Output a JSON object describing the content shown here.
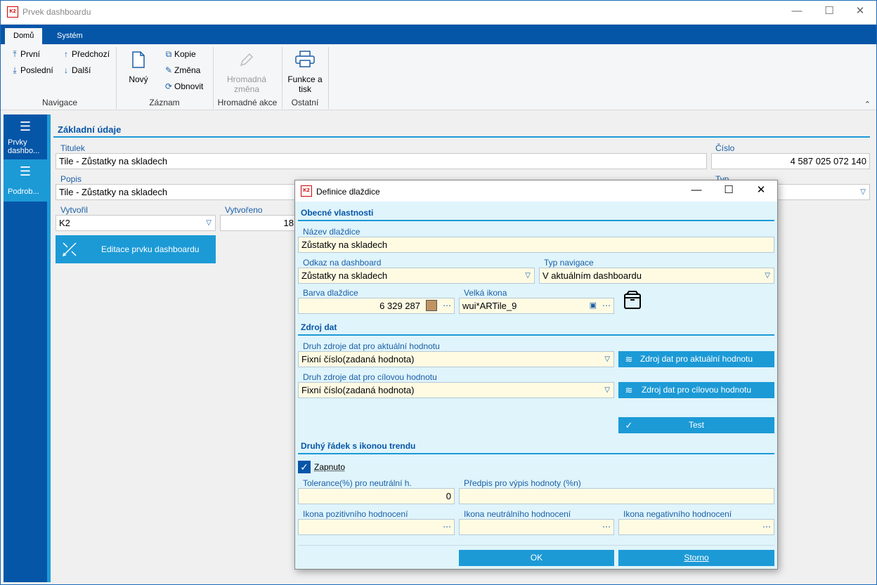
{
  "window": {
    "title": "Prvek dashboardu",
    "logo": "K2"
  },
  "ribbon": {
    "tabs": [
      "Domů",
      "Systém"
    ],
    "navigace": {
      "first": "První",
      "prev": "Předchozí",
      "last": "Poslední",
      "next": "Další",
      "label": "Navigace"
    },
    "zaznam": {
      "new": "Nový",
      "copy": "Kopie",
      "change": "Změna",
      "refresh": "Obnovit",
      "label": "Záznam"
    },
    "hromadne": {
      "bulk_line1": "Hromadná",
      "bulk_line2": "změna",
      "label": "Hromadné akce"
    },
    "ostatni": {
      "print_line1": "Funkce a",
      "print_line2": "tisk",
      "label": "Ostatní"
    }
  },
  "leftnav": {
    "items": [
      {
        "label_line1": "Prvky",
        "label_line2": "dashbo...",
        "icon": "hamburger-icon"
      },
      {
        "label_line1": "Podrob...",
        "label_line2": "",
        "icon": "list-icon"
      }
    ]
  },
  "main": {
    "section": "Základní údaje",
    "titulek_label": "Titulek",
    "titulek_value": "Tile - Zůstatky na skladech",
    "cislo_label": "Číslo",
    "cislo_value": "4 587 025 072 140",
    "popis_label": "Popis",
    "popis_value": "Tile - Zůstatky na skladech",
    "typ_label": "Typ",
    "vytvoril_label": "Vytvořil",
    "vytvoril_value": "K2",
    "vytvoreno_label": "Vytvořeno",
    "vytvoreno_value": "18",
    "edit_button": "Editace prvku dashboardu"
  },
  "dialog": {
    "title": "Definice dlaždice",
    "logo": "K2",
    "sec_general": "Obecné vlastnosti",
    "nazev_label": "Název dlaždice",
    "nazev_value": "Zůstatky na skladech",
    "odkaz_label": "Odkaz na dashboard",
    "odkaz_value": "Zůstatky na skladech",
    "typnav_label": "Typ navigace",
    "typnav_value": "V aktuálním dashboardu",
    "barva_label": "Barva dlaždice",
    "barva_value": "6 329 287",
    "barva_color": "#c19361",
    "ikona_label": "Velká ikona",
    "ikona_value": "wui*ARTile_9",
    "sec_source": "Zdroj dat",
    "druh_akt_label": "Druh zdroje dat pro aktuální hodnotu",
    "druh_akt_value": "Fixní číslo(zadaná hodnota)",
    "zdroj_akt_button": "Zdroj dat pro aktuální hodnotu",
    "druh_cil_label": "Druh zdroje dat pro cílovou hodnotu",
    "druh_cil_value": "Fixní číslo(zadaná hodnota)",
    "zdroj_cil_button": "Zdroj dat pro cílovou hodnotu",
    "test_button": "Test",
    "sec_trend": "Druhý řádek s ikonou trendu",
    "zapnuto_label": "Zapnuto",
    "tolerance_label": "Tolerance(%) pro neutrální h.",
    "tolerance_value": "0",
    "predpis_label": "Předpis pro výpis hodnoty (%n)",
    "predpis_value": "",
    "ikona_poz_label": "Ikona pozitivního hodnocení",
    "ikona_neu_label": "Ikona neutrálního hodnocení",
    "ikona_neg_label": "Ikona negativního hodnocení",
    "ok_button": "OK",
    "storno_button": "Storno"
  }
}
